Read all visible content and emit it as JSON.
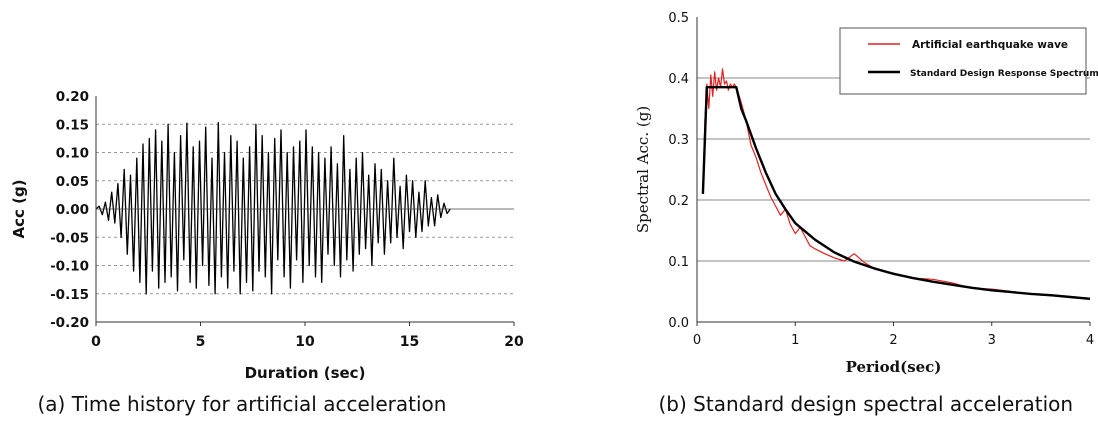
{
  "chart_data": [
    {
      "type": "line",
      "caption": "(a) Time history for artificial acceleration",
      "xlabel": "Duration (sec)",
      "ylabel": "Acc (g)",
      "xlim": [
        0,
        20
      ],
      "ylim": [
        -0.2,
        0.2
      ],
      "xticks": [
        "0",
        "5",
        "10",
        "15",
        "20"
      ],
      "yticks": [
        "0.20",
        "0.15",
        "0.10",
        "0.05",
        "0.00",
        "-0.05",
        "-0.10",
        "-0.15",
        "-0.20"
      ],
      "grid": "horizontal dashed",
      "series": [
        {
          "color": "#000000",
          "x": [
            0.0,
            0.15,
            0.3,
            0.45,
            0.6,
            0.75,
            0.9,
            1.05,
            1.2,
            1.35,
            1.5,
            1.65,
            1.8,
            1.95,
            2.1,
            2.25,
            2.4,
            2.55,
            2.7,
            2.85,
            3.0,
            3.15,
            3.3,
            3.45,
            3.6,
            3.75,
            3.9,
            4.05,
            4.2,
            4.35,
            4.5,
            4.65,
            4.8,
            4.95,
            5.1,
            5.25,
            5.4,
            5.55,
            5.7,
            5.85,
            6.0,
            6.15,
            6.3,
            6.45,
            6.6,
            6.75,
            6.9,
            7.05,
            7.2,
            7.35,
            7.5,
            7.65,
            7.8,
            7.95,
            8.1,
            8.25,
            8.4,
            8.55,
            8.7,
            8.85,
            9.0,
            9.15,
            9.3,
            9.45,
            9.6,
            9.75,
            9.9,
            10.05,
            10.2,
            10.35,
            10.5,
            10.65,
            10.8,
            10.95,
            11.1,
            11.25,
            11.4,
            11.55,
            11.7,
            11.85,
            12.0,
            12.15,
            12.3,
            12.45,
            12.6,
            12.75,
            12.9,
            13.05,
            13.2,
            13.35,
            13.5,
            13.65,
            13.8,
            13.95,
            14.1,
            14.25,
            14.4,
            14.55,
            14.7,
            14.85,
            15.0,
            15.15,
            15.3,
            15.45,
            15.6,
            15.75,
            15.9,
            16.05,
            16.2,
            16.35,
            16.5,
            16.65,
            16.8,
            16.95
          ],
          "y": [
            0.0,
            0.005,
            -0.01,
            0.012,
            -0.02,
            0.03,
            -0.025,
            0.045,
            -0.05,
            0.07,
            -0.08,
            0.06,
            -0.11,
            0.09,
            -0.13,
            0.115,
            -0.15,
            0.125,
            -0.11,
            0.14,
            -0.14,
            0.12,
            -0.13,
            0.15,
            -0.12,
            0.1,
            -0.145,
            0.13,
            -0.09,
            0.152,
            -0.13,
            0.11,
            -0.14,
            0.12,
            -0.1,
            0.145,
            -0.135,
            0.09,
            -0.15,
            0.153,
            -0.12,
            0.1,
            -0.14,
            0.13,
            -0.11,
            0.12,
            -0.15,
            0.09,
            -0.13,
            0.11,
            -0.145,
            0.15,
            -0.11,
            0.13,
            -0.12,
            0.1,
            -0.15,
            0.125,
            -0.09,
            0.14,
            -0.12,
            0.1,
            -0.14,
            0.11,
            -0.09,
            0.12,
            -0.13,
            0.14,
            -0.1,
            0.11,
            -0.12,
            0.1,
            -0.13,
            0.09,
            -0.08,
            0.11,
            -0.1,
            0.08,
            -0.12,
            0.13,
            -0.09,
            0.07,
            -0.11,
            0.09,
            -0.08,
            0.1,
            -0.07,
            0.06,
            -0.1,
            0.08,
            -0.06,
            0.07,
            -0.08,
            0.05,
            -0.06,
            0.09,
            -0.05,
            0.04,
            -0.07,
            0.06,
            -0.04,
            0.05,
            -0.05,
            0.03,
            -0.04,
            0.05,
            -0.03,
            0.02,
            -0.03,
            0.025,
            -0.015,
            0.01,
            -0.008,
            0.0
          ]
        }
      ]
    },
    {
      "type": "line",
      "caption": "(b) Standard design spectral acceleration",
      "xlabel": "Period(sec)",
      "ylabel": "Spectral Acc. (g)",
      "xlim": [
        0,
        4
      ],
      "ylim": [
        0,
        0.5
      ],
      "xticks": [
        "0",
        "1",
        "2",
        "3",
        "4"
      ],
      "yticks": [
        "0.5",
        "0.4",
        "0.3",
        "0.2",
        "0.1",
        "0.0"
      ],
      "grid": "horizontal solid",
      "legend_position": "top-right",
      "series": [
        {
          "name": "Artificial earthquake wave",
          "color": "#e02020",
          "x": [
            0.06,
            0.08,
            0.1,
            0.12,
            0.14,
            0.16,
            0.18,
            0.2,
            0.22,
            0.24,
            0.26,
            0.28,
            0.3,
            0.32,
            0.34,
            0.36,
            0.38,
            0.4,
            0.45,
            0.5,
            0.55,
            0.6,
            0.65,
            0.7,
            0.75,
            0.8,
            0.85,
            0.9,
            0.95,
            1.0,
            1.05,
            1.1,
            1.15,
            1.2,
            1.3,
            1.4,
            1.5,
            1.6,
            1.7,
            1.8,
            2.0,
            2.2,
            2.4,
            2.6,
            2.8,
            3.0,
            3.2,
            3.5,
            3.8,
            4.0
          ],
          "y": [
            0.22,
            0.33,
            0.39,
            0.35,
            0.405,
            0.37,
            0.41,
            0.38,
            0.4,
            0.385,
            0.415,
            0.39,
            0.395,
            0.38,
            0.39,
            0.385,
            0.39,
            0.385,
            0.36,
            0.33,
            0.29,
            0.27,
            0.245,
            0.225,
            0.205,
            0.19,
            0.175,
            0.185,
            0.16,
            0.145,
            0.155,
            0.14,
            0.125,
            0.12,
            0.112,
            0.105,
            0.1,
            0.112,
            0.098,
            0.088,
            0.08,
            0.072,
            0.07,
            0.064,
            0.055,
            0.054,
            0.05,
            0.044,
            0.041,
            0.039
          ]
        },
        {
          "name": "Standard Design Response Spectrum",
          "color": "#000000",
          "x": [
            0.06,
            0.08,
            0.1,
            0.12,
            0.15,
            0.2,
            0.3,
            0.4,
            0.45,
            0.5,
            0.6,
            0.7,
            0.8,
            0.9,
            1.0,
            1.2,
            1.4,
            1.6,
            1.8,
            2.0,
            2.2,
            2.4,
            2.6,
            2.8,
            3.0,
            3.2,
            3.4,
            3.6,
            3.8,
            4.0
          ],
          "y": [
            0.21,
            0.3,
            0.385,
            0.385,
            0.385,
            0.385,
            0.385,
            0.385,
            0.35,
            0.33,
            0.285,
            0.245,
            0.21,
            0.185,
            0.162,
            0.135,
            0.114,
            0.099,
            0.088,
            0.079,
            0.072,
            0.066,
            0.061,
            0.056,
            0.052,
            0.049,
            0.046,
            0.044,
            0.041,
            0.038
          ]
        }
      ]
    }
  ]
}
